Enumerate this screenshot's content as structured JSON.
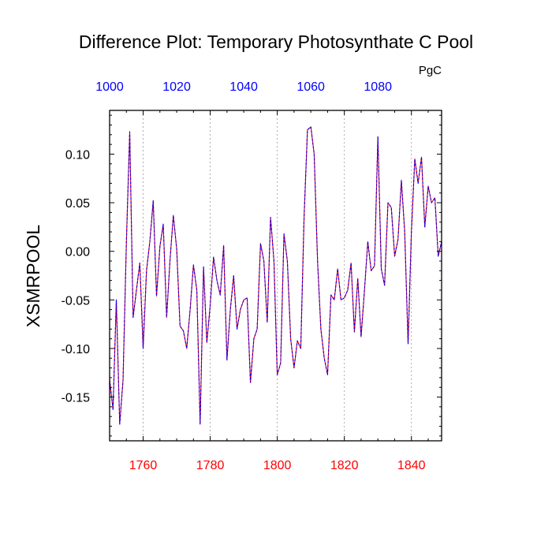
{
  "chart_data": {
    "type": "line",
    "title": "Difference Plot: Temporary Photosynthate C Pool",
    "units": "PgC",
    "ylabel": "XSMRPOOL",
    "xlabel": "",
    "xlim": [
      1750,
      1849
    ],
    "ylim": [
      -0.195,
      0.145
    ],
    "x_ticks": [
      1760,
      1780,
      1800,
      1820,
      1840
    ],
    "x_tick_labels": [
      "1760",
      "1780",
      "1800",
      "1820",
      "1840"
    ],
    "top_ticks": [
      1000,
      1020,
      1040,
      1060,
      1080
    ],
    "top_tick_labels": [
      "1000",
      "1020",
      "1040",
      "1060",
      "1080"
    ],
    "top_axis_offset": -750,
    "y_ticks": [
      0.1,
      0.05,
      0.0,
      -0.05,
      -0.1,
      -0.15
    ],
    "y_tick_labels": [
      "0.10",
      "0.05",
      "0.00",
      "-0.05",
      "-0.10",
      "-0.15"
    ],
    "grid": "vertical-dotted",
    "colors": {
      "bottom_axis": "#ff0000",
      "top_axis": "#0000ff",
      "series_a": "#ff0000",
      "series_b": "#0000ff"
    },
    "x": [
      1750,
      1751,
      1752,
      1753,
      1754,
      1755,
      1756,
      1757,
      1758,
      1759,
      1760,
      1761,
      1762,
      1763,
      1764,
      1765,
      1766,
      1767,
      1768,
      1769,
      1770,
      1771,
      1772,
      1773,
      1774,
      1775,
      1776,
      1777,
      1778,
      1779,
      1780,
      1781,
      1782,
      1783,
      1784,
      1785,
      1786,
      1787,
      1788,
      1789,
      1790,
      1791,
      1792,
      1793,
      1794,
      1795,
      1796,
      1797,
      1798,
      1799,
      1800,
      1801,
      1802,
      1803,
      1804,
      1805,
      1806,
      1807,
      1808,
      1809,
      1810,
      1811,
      1812,
      1813,
      1814,
      1815,
      1816,
      1817,
      1818,
      1819,
      1820,
      1821,
      1822,
      1823,
      1824,
      1825,
      1826,
      1827,
      1828,
      1829,
      1830,
      1831,
      1832,
      1833,
      1834,
      1835,
      1836,
      1837,
      1838,
      1839,
      1840,
      1841,
      1842,
      1843,
      1844,
      1845,
      1846,
      1847,
      1848,
      1849
    ],
    "series": [
      {
        "values": [
          -0.132,
          -0.163,
          -0.05,
          -0.178,
          -0.133,
          0.01,
          0.123,
          -0.068,
          -0.04,
          -0.012,
          -0.1,
          -0.02,
          0.01,
          0.052,
          -0.046,
          0.005,
          0.028,
          -0.068,
          -0.01,
          0.037,
          0.002,
          -0.077,
          -0.082,
          -0.1,
          -0.06,
          -0.014,
          -0.04,
          -0.178,
          -0.016,
          -0.094,
          -0.055,
          -0.006,
          -0.03,
          -0.045,
          0.006,
          -0.112,
          -0.06,
          -0.025,
          -0.08,
          -0.06,
          -0.05,
          -0.048,
          -0.135,
          -0.09,
          -0.08,
          0.008,
          -0.01,
          -0.073,
          0.035,
          -0.01,
          -0.127,
          -0.115,
          0.018,
          -0.01,
          -0.09,
          -0.12,
          -0.092,
          -0.1,
          0.035,
          0.125,
          0.128,
          0.1,
          -0.01,
          -0.08,
          -0.11,
          -0.127,
          -0.045,
          -0.05,
          -0.018,
          -0.05,
          -0.048,
          -0.04,
          -0.012,
          -0.083,
          -0.028,
          -0.088,
          -0.04,
          0.01,
          -0.02,
          -0.015,
          0.118,
          -0.018,
          -0.035,
          0.05,
          0.045,
          -0.005,
          0.012,
          0.073,
          0.02,
          -0.095,
          0.02,
          0.095,
          0.07,
          0.097,
          0.025,
          0.067,
          0.05,
          0.055,
          -0.005,
          0.01
        ]
      }
    ]
  }
}
